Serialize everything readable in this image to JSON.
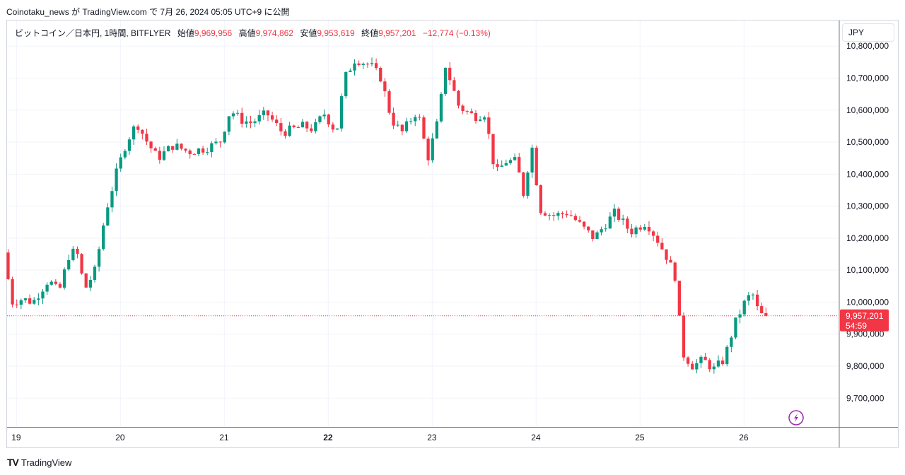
{
  "header": {
    "text": "Coinotaku_news が TradingView.com で 7月 26, 2024 05:05 UTC+9 に公開"
  },
  "legend": {
    "symbol": "ビットコイン／日本円, 1時間, BITFLYER",
    "open_label": "始値",
    "open": "9,969,956",
    "high_label": "高値",
    "high": "9,974,862",
    "low_label": "安値",
    "low": "9,953,619",
    "close_label": "終値",
    "close": "9,957,201",
    "change": "−12,774 (−0.13%)"
  },
  "currency_button": {
    "label": "JPY"
  },
  "price_tag": {
    "price": "9,957,201",
    "countdown": "54:59"
  },
  "flash_icon": "lightning-icon",
  "footer": {
    "logo": "TV",
    "brand": "TradingView"
  },
  "colors": {
    "up": "#089981",
    "down": "#f23645",
    "grid": "#f0f3fa",
    "axis_text": "#131722"
  },
  "chart_data": {
    "type": "candlestick",
    "title": "",
    "ylim": [
      9610000,
      10880000
    ],
    "y_ticks": [
      {
        "value": 10800000,
        "label": "10,800,000"
      },
      {
        "value": 10700000,
        "label": "10,700,000"
      },
      {
        "value": 10600000,
        "label": "10,600,000"
      },
      {
        "value": 10500000,
        "label": "10,500,000"
      },
      {
        "value": 10400000,
        "label": "10,400,000"
      },
      {
        "value": 10300000,
        "label": "10,300,000"
      },
      {
        "value": 10200000,
        "label": "10,200,000"
      },
      {
        "value": 10100000,
        "label": "10,100,000"
      },
      {
        "value": 10000000,
        "label": "10,000,000"
      },
      {
        "value": 9900000,
        "label": "9,900,000"
      },
      {
        "value": 9800000,
        "label": "9,800,000"
      },
      {
        "value": 9700000,
        "label": "9,700,000"
      }
    ],
    "x_ticks": [
      {
        "day": 19,
        "label": "19",
        "bold": false
      },
      {
        "day": 20,
        "label": "20",
        "bold": false
      },
      {
        "day": 21,
        "label": "21",
        "bold": false
      },
      {
        "day": 22,
        "label": "22",
        "bold": true
      },
      {
        "day": 23,
        "label": "23",
        "bold": false
      },
      {
        "day": 24,
        "label": "24",
        "bold": false
      },
      {
        "day": 25,
        "label": "25",
        "bold": false
      },
      {
        "day": 26,
        "label": "26",
        "bold": false
      }
    ],
    "x_range_days": [
      18.91,
      26.91
    ],
    "current_price": 9957201,
    "candle_interval_hours": 1,
    "anchors": [
      [
        18.92,
        10150000
      ],
      [
        19.0,
        10000000
      ],
      [
        19.1,
        10010000
      ],
      [
        19.2,
        10000000
      ],
      [
        19.35,
        10070000
      ],
      [
        19.45,
        10030000
      ],
      [
        19.55,
        10150000
      ],
      [
        19.62,
        10160000
      ],
      [
        19.7,
        10040000
      ],
      [
        19.8,
        10100000
      ],
      [
        19.9,
        10280000
      ],
      [
        20.0,
        10400000
      ],
      [
        20.1,
        10500000
      ],
      [
        20.2,
        10560000
      ],
      [
        20.3,
        10500000
      ],
      [
        20.4,
        10450000
      ],
      [
        20.55,
        10490000
      ],
      [
        20.7,
        10470000
      ],
      [
        20.85,
        10480000
      ],
      [
        21.0,
        10500000
      ],
      [
        21.1,
        10600000
      ],
      [
        21.2,
        10570000
      ],
      [
        21.3,
        10560000
      ],
      [
        21.45,
        10590000
      ],
      [
        21.6,
        10530000
      ],
      [
        21.8,
        10550000
      ],
      [
        21.9,
        10540000
      ],
      [
        22.0,
        10590000
      ],
      [
        22.12,
        10530000
      ],
      [
        22.2,
        10700000
      ],
      [
        22.3,
        10760000
      ],
      [
        22.45,
        10740000
      ],
      [
        22.55,
        10700000
      ],
      [
        22.65,
        10570000
      ],
      [
        22.75,
        10530000
      ],
      [
        22.9,
        10600000
      ],
      [
        23.0,
        10450000
      ],
      [
        23.1,
        10570000
      ],
      [
        23.17,
        10740000
      ],
      [
        23.3,
        10610000
      ],
      [
        23.45,
        10580000
      ],
      [
        23.55,
        10590000
      ],
      [
        23.65,
        10400000
      ],
      [
        23.75,
        10440000
      ],
      [
        23.85,
        10440000
      ],
      [
        23.92,
        10340000
      ],
      [
        24.0,
        10490000
      ],
      [
        24.08,
        10290000
      ],
      [
        24.2,
        10270000
      ],
      [
        24.35,
        10280000
      ],
      [
        24.5,
        10230000
      ],
      [
        24.6,
        10200000
      ],
      [
        24.7,
        10240000
      ],
      [
        24.8,
        10280000
      ],
      [
        24.95,
        10220000
      ],
      [
        25.1,
        10250000
      ],
      [
        25.2,
        10200000
      ],
      [
        25.3,
        10140000
      ],
      [
        25.38,
        10080000
      ],
      [
        25.45,
        9840000
      ],
      [
        25.55,
        9800000
      ],
      [
        25.65,
        9820000
      ],
      [
        25.75,
        9790000
      ],
      [
        25.85,
        9820000
      ],
      [
        25.95,
        9930000
      ],
      [
        26.05,
        10000000
      ],
      [
        26.12,
        10030000
      ],
      [
        26.18,
        9970000
      ],
      [
        26.22,
        9957201
      ]
    ]
  }
}
